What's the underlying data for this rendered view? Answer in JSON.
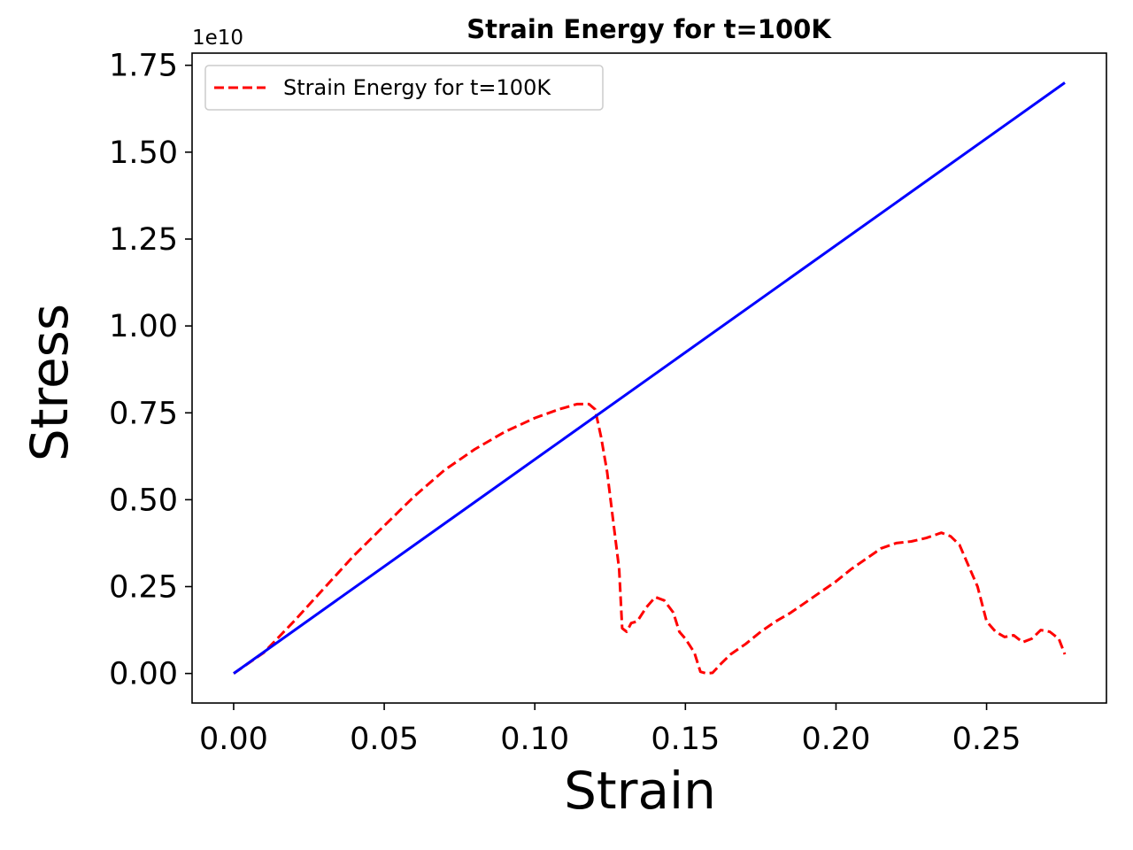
{
  "chart_data": {
    "type": "line",
    "title": "Strain Energy for t=100K",
    "xlabel": "Strain",
    "ylabel": "Stress",
    "y_offset_text": "1e10",
    "xlim": [
      -0.0138,
      0.2898
    ],
    "ylim": [
      -0.085,
      1.785
    ],
    "x_ticks": [
      0.0,
      0.05,
      0.1,
      0.15,
      0.2,
      0.25
    ],
    "x_tick_labels": [
      "0.00",
      "0.05",
      "0.10",
      "0.15",
      "0.20",
      "0.25"
    ],
    "y_ticks": [
      0.0,
      0.25,
      0.5,
      0.75,
      1.0,
      1.25,
      1.5,
      1.75
    ],
    "y_tick_labels": [
      "0.00",
      "0.25",
      "0.50",
      "0.75",
      "1.00",
      "1.25",
      "1.50",
      "1.75"
    ],
    "grid": false,
    "legend_position": "upper-left",
    "series": [
      {
        "name": "Strain Energy for t=100K",
        "color": "#ff0000",
        "style": "dashed",
        "in_legend": true,
        "x": [
          0.0,
          0.01,
          0.02,
          0.03,
          0.04,
          0.05,
          0.06,
          0.07,
          0.08,
          0.09,
          0.1,
          0.108,
          0.114,
          0.118,
          0.12,
          0.122,
          0.124,
          0.126,
          0.128,
          0.129,
          0.1305,
          0.132,
          0.134,
          0.137,
          0.14,
          0.143,
          0.146,
          0.148,
          0.15,
          0.153,
          0.155,
          0.157,
          0.159,
          0.162,
          0.165,
          0.17,
          0.175,
          0.18,
          0.185,
          0.19,
          0.195,
          0.2,
          0.205,
          0.21,
          0.215,
          0.22,
          0.225,
          0.23,
          0.235,
          0.238,
          0.241,
          0.244,
          0.247,
          0.25,
          0.253,
          0.256,
          0.259,
          0.262,
          0.265,
          0.268,
          0.271,
          0.274,
          0.276
        ],
        "values": [
          0.0,
          0.06,
          0.15,
          0.245,
          0.34,
          0.425,
          0.51,
          0.585,
          0.645,
          0.695,
          0.735,
          0.76,
          0.775,
          0.775,
          0.76,
          0.68,
          0.58,
          0.44,
          0.3,
          0.13,
          0.12,
          0.145,
          0.15,
          0.19,
          0.22,
          0.21,
          0.175,
          0.12,
          0.1,
          0.06,
          0.005,
          0.0,
          0.002,
          0.03,
          0.055,
          0.085,
          0.12,
          0.15,
          0.175,
          0.205,
          0.235,
          0.265,
          0.3,
          0.33,
          0.36,
          0.375,
          0.38,
          0.39,
          0.405,
          0.395,
          0.37,
          0.31,
          0.25,
          0.15,
          0.12,
          0.105,
          0.11,
          0.09,
          0.1,
          0.125,
          0.12,
          0.1,
          0.055
        ]
      },
      {
        "name": "",
        "color": "#0000ff",
        "style": "solid",
        "in_legend": false,
        "x": [
          0.0,
          0.276
        ],
        "values": [
          0.0,
          1.7
        ]
      }
    ]
  }
}
